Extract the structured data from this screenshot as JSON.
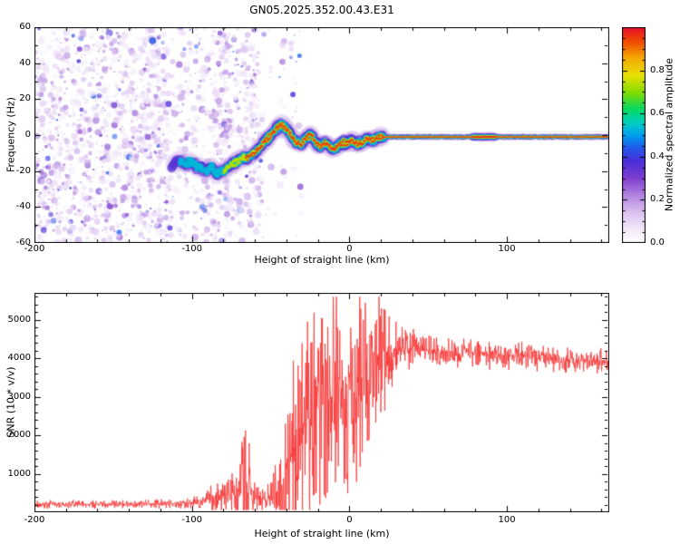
{
  "figure": {
    "title": "GN05.2025.352.00.43.E31",
    "background": "#ffffff"
  },
  "chart_data": [
    {
      "type": "heatmap",
      "title": "GN05.2025.352.00.43.E31",
      "xlabel": "Height of straight line (km)",
      "ylabel": "Frequency (Hz)",
      "xlim": [
        -200,
        165
      ],
      "ylim": [
        -60,
        60
      ],
      "xticks_major": [
        -200,
        -100,
        0,
        100
      ],
      "xtick_minor_step": 20,
      "yticks_major": [
        -60,
        -40,
        -20,
        0,
        20,
        40,
        60
      ],
      "ytick_minor_step": 10,
      "grid": false,
      "colorbar": {
        "label": "Normalized spectral amplitude",
        "range": [
          0,
          1
        ],
        "ticks": [
          0,
          0.2,
          0.4,
          0.6,
          0.8
        ],
        "tick_labels": [
          "0.0",
          "0.2",
          "0.4",
          "0.6",
          "0.8"
        ],
        "tick_minor_step": 0.05
      },
      "colormap": [
        [
          0.0,
          "#ffffff"
        ],
        [
          0.06,
          "#f3ecfa"
        ],
        [
          0.14,
          "#dcc2f0"
        ],
        [
          0.22,
          "#b286e0"
        ],
        [
          0.3,
          "#8040d0"
        ],
        [
          0.38,
          "#4a2fd8"
        ],
        [
          0.44,
          "#2356e8"
        ],
        [
          0.5,
          "#00a0f0"
        ],
        [
          0.56,
          "#00cfc0"
        ],
        [
          0.62,
          "#00d864"
        ],
        [
          0.7,
          "#86dc00"
        ],
        [
          0.78,
          "#e8e000"
        ],
        [
          0.86,
          "#f5a800"
        ],
        [
          0.93,
          "#f05000"
        ],
        [
          1.0,
          "#e8102a"
        ]
      ],
      "noise_regions": [
        {
          "x0": -200,
          "x1": -115,
          "count": 1500
        },
        {
          "x0": -115,
          "x1": -88,
          "count": 260
        },
        {
          "x0": -88,
          "x1": -57,
          "count": 520
        },
        {
          "x0": -57,
          "x1": -30,
          "count": 70
        }
      ],
      "ridge": {
        "points": [
          [
            -113,
            -17
          ],
          [
            -108,
            -14
          ],
          [
            -104,
            -16
          ],
          [
            -100,
            -15
          ],
          [
            -96,
            -18
          ],
          [
            -92,
            -20
          ],
          [
            -88,
            -18
          ],
          [
            -84,
            -21
          ],
          [
            -80,
            -20
          ],
          [
            -76,
            -17
          ],
          [
            -72,
            -15
          ],
          [
            -68,
            -13
          ],
          [
            -64,
            -12
          ],
          [
            -60,
            -9
          ],
          [
            -56,
            -6
          ],
          [
            -52,
            -2
          ],
          [
            -49,
            1
          ],
          [
            -46,
            4
          ],
          [
            -43,
            6
          ],
          [
            -40,
            3
          ],
          [
            -37,
            0
          ],
          [
            -34,
            -4
          ],
          [
            -31,
            -5
          ],
          [
            -28,
            -2
          ],
          [
            -25,
            0
          ],
          [
            -22,
            -3
          ],
          [
            -19,
            -6
          ],
          [
            -16,
            -4
          ],
          [
            -13,
            -6
          ],
          [
            -10,
            -8
          ],
          [
            -7,
            -6
          ],
          [
            -4,
            -4
          ],
          [
            -1,
            -5
          ],
          [
            2,
            -3
          ],
          [
            5,
            -5
          ],
          [
            8,
            -4
          ],
          [
            11,
            -2
          ],
          [
            14,
            -3
          ],
          [
            17,
            -2
          ],
          [
            20,
            -1
          ],
          [
            30,
            -1
          ],
          [
            165,
            -1
          ]
        ],
        "intensity": [
          [
            -113,
            0.45
          ],
          [
            -95,
            0.55
          ],
          [
            -82,
            0.68
          ],
          [
            -70,
            0.8
          ],
          [
            -62,
            0.92
          ],
          [
            -54,
            1
          ],
          [
            165,
            1
          ]
        ],
        "thin_after_x": 22
      }
    },
    {
      "type": "line",
      "xlabel": "Height of straight line (km)",
      "ylabel": "SNR (10 * v/v)",
      "xlim": [
        -200,
        165
      ],
      "ylim": [
        0,
        5700
      ],
      "xticks_major": [
        -200,
        -100,
        0,
        100
      ],
      "xtick_minor_step": 20,
      "yticks_major": [
        1000,
        2000,
        3000,
        4000,
        5000
      ],
      "ytick_minor_step": 200,
      "color": "#f83333",
      "profile": [
        [
          -200,
          210,
          70
        ],
        [
          -150,
          210,
          70
        ],
        [
          -120,
          215,
          75
        ],
        [
          -105,
          230,
          90
        ],
        [
          -95,
          260,
          140
        ],
        [
          -88,
          320,
          260
        ],
        [
          -80,
          380,
          340
        ],
        [
          -73,
          420,
          520
        ],
        [
          -68,
          560,
          900
        ],
        [
          -64,
          650,
          1100
        ],
        [
          -60,
          430,
          380
        ],
        [
          -56,
          330,
          200
        ],
        [
          -52,
          330,
          260
        ],
        [
          -48,
          430,
          600
        ],
        [
          -44,
          700,
          900
        ],
        [
          -40,
          1100,
          1300
        ],
        [
          -36,
          1500,
          1500
        ],
        [
          -32,
          1900,
          1600
        ],
        [
          -28,
          2200,
          1700
        ],
        [
          -24,
          2500,
          1800
        ],
        [
          -20,
          2700,
          1800
        ],
        [
          -16,
          2900,
          1900
        ],
        [
          -12,
          3100,
          1900
        ],
        [
          -8,
          3200,
          2000
        ],
        [
          -4,
          3300,
          2000
        ],
        [
          0,
          3400,
          1900
        ],
        [
          4,
          3500,
          1800
        ],
        [
          8,
          3600,
          1700
        ],
        [
          12,
          3700,
          1500
        ],
        [
          16,
          3850,
          1300
        ],
        [
          20,
          3950,
          1100
        ],
        [
          24,
          4050,
          900
        ],
        [
          28,
          4150,
          700
        ],
        [
          32,
          4200,
          500
        ],
        [
          36,
          4250,
          380
        ],
        [
          42,
          4250,
          300
        ],
        [
          50,
          4220,
          280
        ],
        [
          60,
          4180,
          260
        ],
        [
          75,
          4150,
          260
        ],
        [
          90,
          4100,
          250
        ],
        [
          105,
          4050,
          240
        ],
        [
          120,
          4000,
          230
        ],
        [
          140,
          3950,
          220
        ],
        [
          165,
          3920,
          220
        ]
      ]
    }
  ]
}
